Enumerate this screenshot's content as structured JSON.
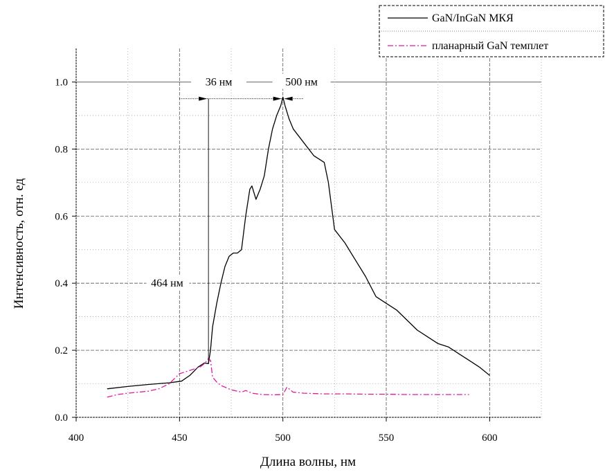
{
  "chart_data": {
    "type": "line",
    "title": "",
    "xlabel": "Длина волны, нм",
    "ylabel": "Интенсивность, отн. ед",
    "xlim": [
      400,
      625
    ],
    "ylim": [
      0,
      1.1
    ],
    "x_ticks": [
      "400",
      "450",
      "500",
      "550",
      "600"
    ],
    "y_ticks": [
      "0.0",
      "0.2",
      "0.4",
      "0.6",
      "0.8",
      "1.0"
    ],
    "grid": true,
    "legend_position": "top-right",
    "series": [
      {
        "name": "GaN/InGaN МКЯ",
        "color": "#000000",
        "style": "solid",
        "x": [
          415,
          425,
          435,
          445,
          451,
          455,
          459,
          462,
          464,
          465,
          466,
          468,
          470,
          472,
          474,
          476,
          478,
          480,
          482,
          484,
          485,
          487,
          489,
          491,
          493,
          495,
          497,
          499,
          500,
          501,
          503,
          505,
          510,
          515,
          520,
          522,
          525,
          530,
          535,
          540,
          545,
          550,
          555,
          560,
          565,
          570,
          575,
          580,
          585,
          590,
          595,
          600
        ],
        "y": [
          0.085,
          0.092,
          0.098,
          0.103,
          0.108,
          0.125,
          0.15,
          0.162,
          0.16,
          0.2,
          0.27,
          0.34,
          0.4,
          0.45,
          0.48,
          0.49,
          0.49,
          0.5,
          0.6,
          0.68,
          0.69,
          0.65,
          0.68,
          0.72,
          0.8,
          0.86,
          0.9,
          0.93,
          0.955,
          0.93,
          0.89,
          0.86,
          0.82,
          0.78,
          0.76,
          0.7,
          0.56,
          0.52,
          0.47,
          0.42,
          0.36,
          0.34,
          0.32,
          0.29,
          0.26,
          0.24,
          0.22,
          0.21,
          0.19,
          0.17,
          0.15,
          0.125
        ]
      },
      {
        "name": "планарный GaN темплет",
        "color": "#e0199a",
        "style": "dash-dot",
        "x": [
          415,
          420,
          425,
          430,
          435,
          440,
          445,
          450,
          455,
          460,
          462,
          464,
          465,
          466,
          468,
          470,
          472,
          475,
          478,
          480,
          482,
          485,
          490,
          495,
          500,
          502,
          505,
          510,
          520,
          530,
          540,
          550,
          560,
          570,
          580,
          590
        ],
        "y": [
          0.06,
          0.068,
          0.072,
          0.075,
          0.078,
          0.085,
          0.1,
          0.13,
          0.14,
          0.15,
          0.16,
          0.175,
          0.17,
          0.12,
          0.105,
          0.095,
          0.09,
          0.082,
          0.078,
          0.075,
          0.08,
          0.072,
          0.068,
          0.067,
          0.068,
          0.09,
          0.075,
          0.072,
          0.07,
          0.07,
          0.069,
          0.069,
          0.068,
          0.068,
          0.068,
          0.068
        ]
      }
    ],
    "annotations": {
      "fwhm_label": "36 нм",
      "peak_label": "500 нм",
      "left_label": "464 нм",
      "fwhm_level": 0.95,
      "fwhm_from": 464,
      "fwhm_to": 500,
      "left_level": 0.4
    }
  }
}
